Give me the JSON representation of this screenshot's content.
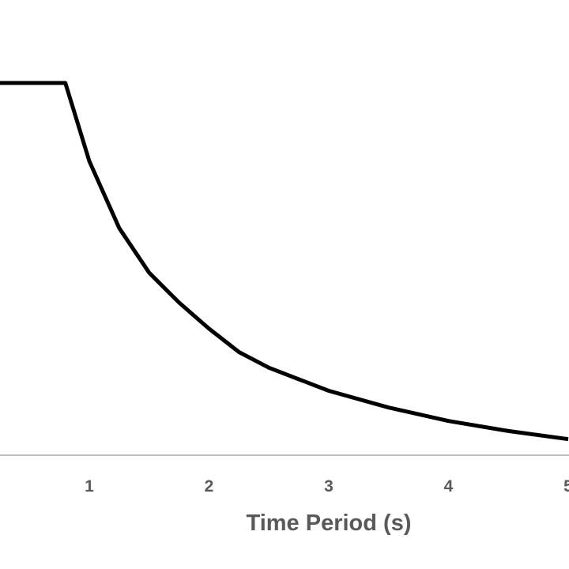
{
  "chart_data": {
    "type": "line",
    "xlabel": "Time Period (s)",
    "ylabel": "",
    "xlim": [
      0.25,
      5.05
    ],
    "ylim": [
      0,
      1
    ],
    "x_ticks": [
      1,
      2,
      3,
      4,
      5
    ],
    "x_tick_labels": [
      "1",
      "2",
      "3",
      "4",
      "5"
    ],
    "grid": false,
    "series": [
      {
        "x": [
          0.0,
          0.8,
          1.0,
          1.25,
          1.5,
          1.75,
          2.0,
          2.25,
          2.5,
          3.0,
          3.5,
          4.0,
          4.5,
          5.0
        ],
        "y": [
          1.0,
          1.0,
          0.79,
          0.61,
          0.49,
          0.41,
          0.34,
          0.277,
          0.235,
          0.173,
          0.128,
          0.092,
          0.065,
          0.043
        ],
        "color": "#000000"
      }
    ]
  }
}
